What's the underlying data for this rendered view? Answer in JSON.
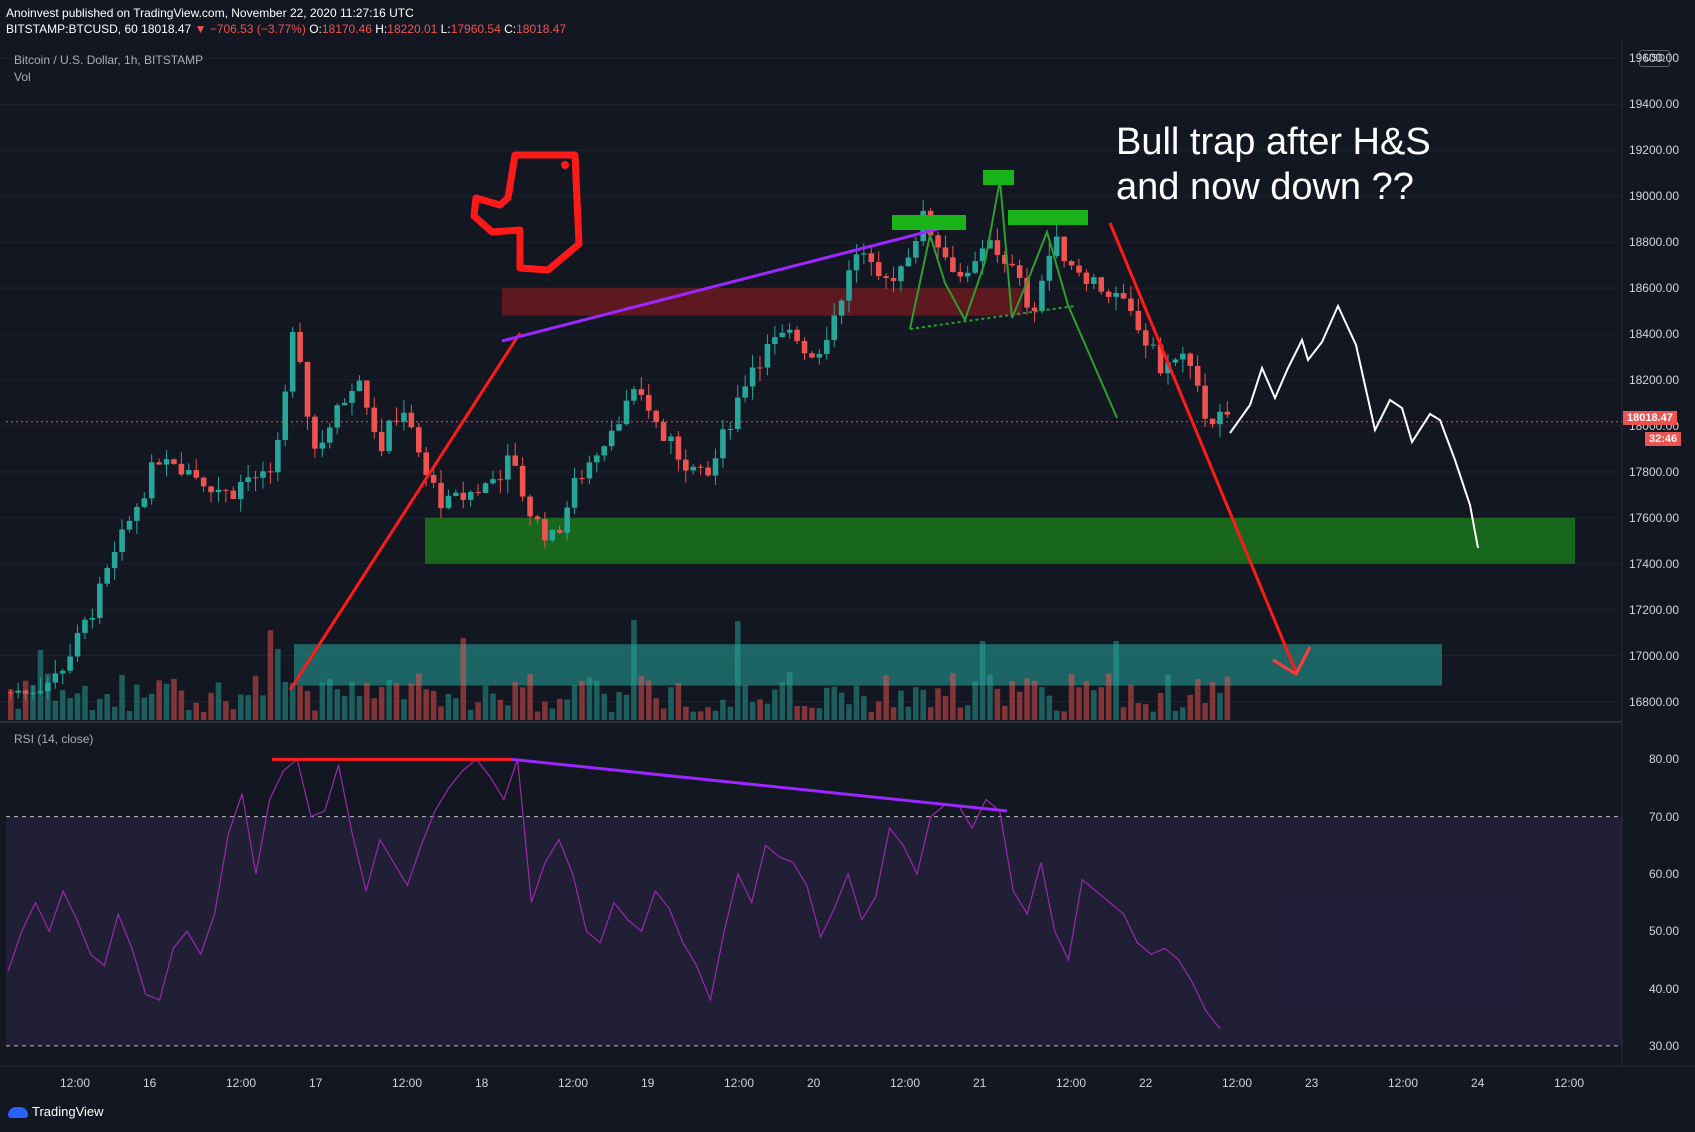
{
  "header": {
    "publisher": "Anoinvest published on TradingView.com, November 22, 2020 11:27:16 UTC",
    "symbol": "BITSTAMP:BTCUSD, 60",
    "last": "18018.47",
    "change": "▼ −706.53 (−3.77%)",
    "o_label": "O:",
    "o_value": "18170.46",
    "h_label": "H:",
    "h_value": "18220.01",
    "l_label": "L:",
    "l_value": "17960.54",
    "c_label": "C:",
    "c_value": "18018.47"
  },
  "pane_title": "Bitcoin / U.S. Dollar, 1h, BITSTAMP",
  "vol_label": "Vol",
  "rsi_label": "RSI (14, close)",
  "currency": "USD",
  "price_axis": [
    "19600.00",
    "19400.00",
    "19200.00",
    "19000.00",
    "18800.00",
    "18600.00",
    "18400.00",
    "18200.00",
    "18000.00",
    "17800.00",
    "17600.00",
    "17400.00",
    "17200.00",
    "17000.00",
    "16800.00"
  ],
  "rsi_axis": [
    "80.00",
    "70.00",
    "60.00",
    "50.00",
    "40.00",
    "30.00"
  ],
  "time_axis": [
    "12:00",
    "16",
    "12:00",
    "17",
    "12:00",
    "18",
    "12:00",
    "19",
    "12:00",
    "20",
    "12:00",
    "21",
    "12:00",
    "22",
    "12:00",
    "23",
    "12:00",
    "24",
    "12:00"
  ],
  "current_price": "18018.47",
  "countdown": "32:46",
  "annotation": "Bull trap after H&S\nand now down ??",
  "brand": "TradingView",
  "colors": {
    "up": "#26a69a",
    "down": "#ef5350",
    "bg": "#131722"
  },
  "chart_data": {
    "type": "candlestick",
    "price_range": [
      16720,
      19680
    ],
    "rsi_range": [
      27,
      86
    ],
    "close_path": [
      16840,
      16860,
      16900,
      17050,
      17250,
      17480,
      17700,
      17900,
      17820,
      17760,
      17700,
      17780,
      17760,
      18390,
      17900,
      18050,
      18250,
      17900,
      18100,
      17800,
      17650,
      17700,
      17750,
      17850,
      17600,
      17500,
      17750,
      17900,
      18050,
      18150,
      17950,
      17850,
      17750,
      18000,
      18250,
      18350,
      18400,
      18300,
      18500,
      18780,
      18600,
      18700,
      18900,
      18750,
      18620,
      18800,
      18700,
      18500,
      18800,
      18700,
      18620,
      18550,
      18400,
      18250,
      18300,
      18050,
      18018
    ],
    "rsi_values": [
      43,
      50,
      55,
      50,
      57,
      52,
      46,
      44,
      53,
      47,
      39,
      38,
      47,
      50,
      46,
      53,
      67,
      74,
      60,
      73,
      78,
      80,
      70,
      71,
      79,
      67,
      57,
      66,
      62,
      58,
      65,
      71,
      75,
      78,
      80,
      77,
      73,
      80,
      55,
      62,
      66,
      60,
      50,
      48,
      55,
      52,
      50,
      57,
      54,
      48,
      44,
      38,
      50,
      60,
      55,
      65,
      63,
      62,
      58,
      49,
      54,
      60,
      52,
      56,
      68,
      65,
      60,
      70,
      72,
      72,
      68,
      73,
      71,
      57,
      53,
      62,
      50,
      45,
      59,
      57,
      55,
      53,
      48,
      46,
      47,
      45,
      41,
      36,
      33
    ]
  }
}
